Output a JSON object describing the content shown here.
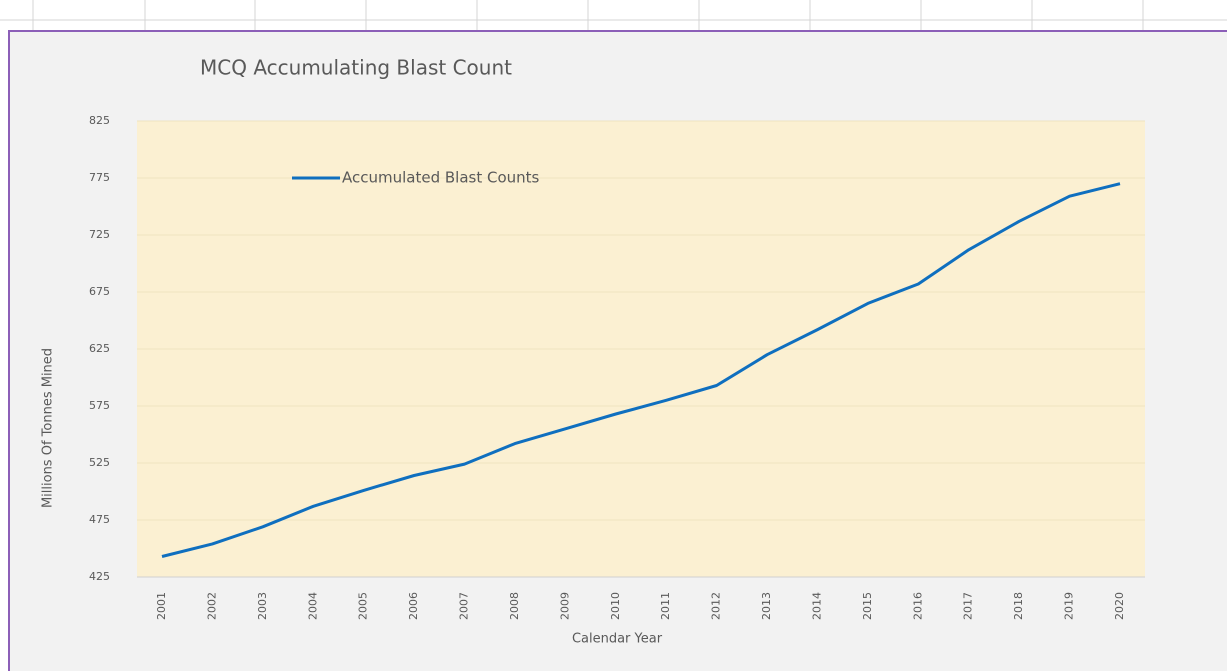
{
  "chart_data": {
    "type": "line",
    "title": "MCQ Accumulating Blast Count",
    "x_label": "Calendar Year",
    "y_label": "Millions Of Tonnes Mined",
    "categories": [
      "2001",
      "2002",
      "2003",
      "2004",
      "2005",
      "2006",
      "2007",
      "2008",
      "2009",
      "2010",
      "2011",
      "2012",
      "2013",
      "2014",
      "2015",
      "2016",
      "2017",
      "2018",
      "2019",
      "2020"
    ],
    "series": [
      {
        "name": "Accumulated Blast Counts",
        "color": "#0f6fbf",
        "values": [
          443,
          454,
          469,
          487,
          501,
          514,
          524,
          542,
          555,
          568,
          580,
          593,
          620,
          642,
          665,
          682,
          712,
          737,
          759,
          770
        ]
      }
    ],
    "ylim": [
      425,
      825
    ],
    "yticks": [
      425,
      475,
      525,
      575,
      625,
      675,
      725,
      775,
      825
    ],
    "grid": true,
    "legend": "upper left"
  }
}
